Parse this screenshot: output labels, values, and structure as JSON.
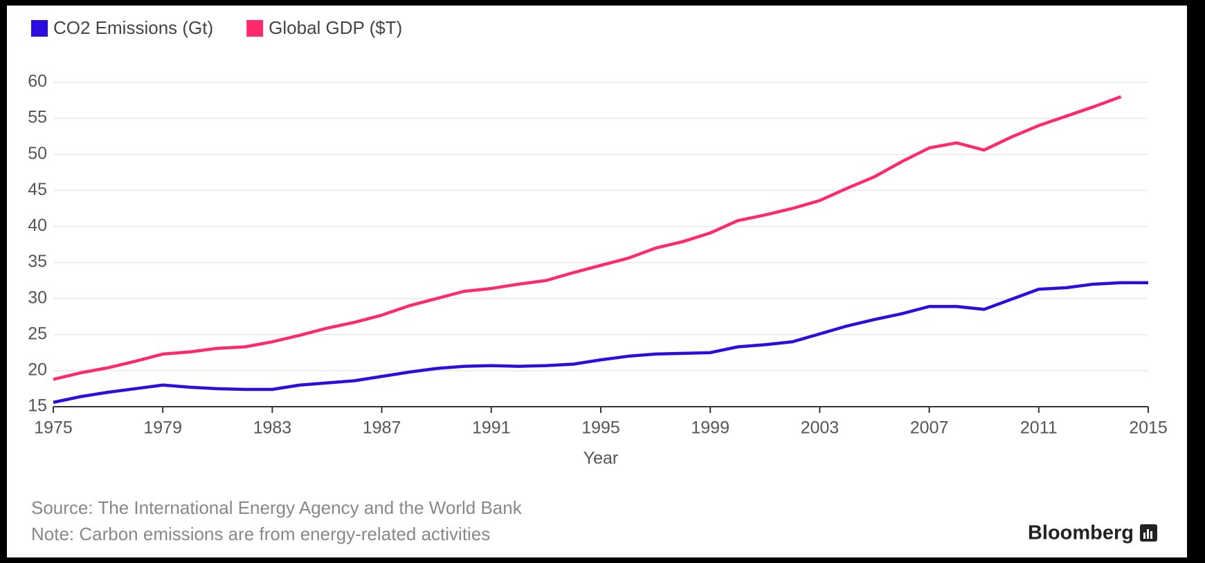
{
  "chart_data": {
    "type": "line",
    "x": [
      1975,
      1976,
      1977,
      1978,
      1979,
      1980,
      1981,
      1982,
      1983,
      1984,
      1985,
      1986,
      1987,
      1988,
      1989,
      1990,
      1991,
      1992,
      1993,
      1994,
      1995,
      1996,
      1997,
      1998,
      1999,
      2000,
      2001,
      2002,
      2003,
      2004,
      2005,
      2006,
      2007,
      2008,
      2009,
      2010,
      2011,
      2012,
      2013,
      2014,
      2015
    ],
    "series": [
      {
        "name": "CO2 Emissions (Gt)",
        "color": "#2a0ee0",
        "values": [
          15.6,
          16.4,
          17.0,
          17.5,
          18.0,
          17.7,
          17.5,
          17.4,
          17.4,
          18.0,
          18.3,
          18.6,
          19.2,
          19.8,
          20.3,
          20.6,
          20.7,
          20.6,
          20.7,
          20.9,
          21.5,
          22.0,
          22.3,
          22.4,
          22.5,
          23.3,
          23.6,
          24.0,
          25.1,
          26.2,
          27.1,
          27.9,
          28.9,
          28.9,
          28.5,
          29.9,
          31.3,
          31.5,
          32.0,
          32.2,
          32.2
        ]
      },
      {
        "name": "Global GDP ($T)",
        "color": "#ff2a6d",
        "values": [
          18.8,
          19.7,
          20.4,
          21.3,
          22.3,
          22.6,
          23.1,
          23.3,
          24.0,
          24.9,
          25.9,
          26.7,
          27.7,
          29.0,
          30.0,
          31.0,
          31.4,
          32.0,
          32.5,
          33.6,
          34.6,
          35.6,
          37.0,
          37.9,
          39.1,
          40.8,
          41.6,
          42.5,
          43.6,
          45.3,
          46.9,
          49.0,
          50.9,
          51.6,
          50.6,
          52.4,
          54.0,
          55.3,
          56.6,
          58.0,
          null
        ]
      }
    ],
    "xlabel": "Year",
    "xlim": [
      1975,
      2015
    ],
    "xticks": [
      1975,
      1979,
      1983,
      1987,
      1991,
      1995,
      1999,
      2003,
      2007,
      2011,
      2015
    ],
    "ylim": [
      15,
      60
    ],
    "yticks": [
      15,
      20,
      25,
      30,
      35,
      40,
      45,
      50,
      55,
      60
    ],
    "grid": true,
    "legend": "top-left",
    "notes": [
      "Source: The International Energy Agency and the World Bank",
      "Note: Carbon emissions are from energy-related activities"
    ],
    "brand": "Bloomberg"
  }
}
